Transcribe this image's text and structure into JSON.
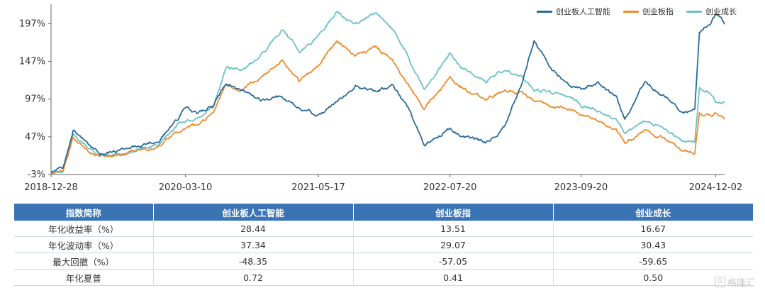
{
  "chart_data": {
    "type": "line",
    "y_axis_ticks": [
      "-3%",
      "47%",
      "97%",
      "147%",
      "197%"
    ],
    "x_axis_ticks": [
      "2018-12-28",
      "2020-03-10",
      "2021-05-17",
      "2022-07-20",
      "2023-09-20",
      "2024-12-02"
    ],
    "ylim": [
      -3,
      217
    ],
    "grid": false,
    "legend_position": "top-right",
    "series": [
      {
        "name": "创业板人工智能",
        "color": "#2b6a99",
        "values": [
          [
            "2018-12-28",
            0
          ],
          [
            "2019-02-05",
            2
          ],
          [
            "2019-03-10",
            55
          ],
          [
            "2019-04-20",
            40
          ],
          [
            "2019-06-05",
            25
          ],
          [
            "2019-08-10",
            28
          ],
          [
            "2019-10-15",
            35
          ],
          [
            "2019-12-15",
            45
          ],
          [
            "2020-02-15",
            72
          ],
          [
            "2020-03-10",
            85
          ],
          [
            "2020-04-20",
            78
          ],
          [
            "2020-06-10",
            90
          ],
          [
            "2020-07-20",
            120
          ],
          [
            "2020-09-10",
            110
          ],
          [
            "2020-11-10",
            95
          ],
          [
            "2021-01-20",
            100
          ],
          [
            "2021-03-15",
            85
          ],
          [
            "2021-05-17",
            75
          ],
          [
            "2021-07-15",
            95
          ],
          [
            "2021-09-15",
            115
          ],
          [
            "2021-11-20",
            105
          ],
          [
            "2022-01-15",
            115
          ],
          [
            "2022-03-15",
            80
          ],
          [
            "2022-04-27",
            35
          ],
          [
            "2022-07-20",
            60
          ],
          [
            "2022-09-20",
            45
          ],
          [
            "2022-11-15",
            40
          ],
          [
            "2023-01-15",
            60
          ],
          [
            "2023-03-10",
            115
          ],
          [
            "2023-04-20",
            175
          ],
          [
            "2023-06-15",
            135
          ],
          [
            "2023-08-15",
            115
          ],
          [
            "2023-09-20",
            110
          ],
          [
            "2023-11-15",
            120
          ],
          [
            "2024-01-15",
            95
          ],
          [
            "2024-02-10",
            70
          ],
          [
            "2024-04-15",
            120
          ],
          [
            "2024-06-15",
            100
          ],
          [
            "2024-08-20",
            80
          ],
          [
            "2024-09-25",
            85
          ],
          [
            "2024-10-10",
            185
          ],
          [
            "2024-11-15",
            200
          ],
          [
            "2024-12-02",
            210
          ],
          [
            "2024-12-31",
            196
          ]
        ]
      },
      {
        "name": "创业板指",
        "color": "#ee8a2e",
        "values": [
          [
            "2018-12-28",
            0
          ],
          [
            "2019-02-05",
            1
          ],
          [
            "2019-03-10",
            45
          ],
          [
            "2019-04-20",
            32
          ],
          [
            "2019-06-05",
            20
          ],
          [
            "2019-08-10",
            22
          ],
          [
            "2019-10-15",
            28
          ],
          [
            "2019-12-15",
            35
          ],
          [
            "2020-02-15",
            55
          ],
          [
            "2020-03-10",
            60
          ],
          [
            "2020-04-20",
            62
          ],
          [
            "2020-06-10",
            78
          ],
          [
            "2020-07-20",
            115
          ],
          [
            "2020-09-10",
            110
          ],
          [
            "2020-11-10",
            125
          ],
          [
            "2021-01-20",
            150
          ],
          [
            "2021-03-15",
            120
          ],
          [
            "2021-05-17",
            140
          ],
          [
            "2021-07-15",
            175
          ],
          [
            "2021-09-15",
            155
          ],
          [
            "2021-11-20",
            165
          ],
          [
            "2022-01-15",
            150
          ],
          [
            "2022-03-15",
            110
          ],
          [
            "2022-04-27",
            85
          ],
          [
            "2022-07-20",
            125
          ],
          [
            "2022-09-20",
            105
          ],
          [
            "2022-11-15",
            100
          ],
          [
            "2023-01-15",
            110
          ],
          [
            "2023-03-10",
            105
          ],
          [
            "2023-04-20",
            95
          ],
          [
            "2023-06-15",
            90
          ],
          [
            "2023-08-15",
            85
          ],
          [
            "2023-09-20",
            75
          ],
          [
            "2023-11-15",
            68
          ],
          [
            "2024-01-15",
            55
          ],
          [
            "2024-02-10",
            40
          ],
          [
            "2024-04-15",
            55
          ],
          [
            "2024-06-15",
            45
          ],
          [
            "2024-08-20",
            30
          ],
          [
            "2024-09-25",
            28
          ],
          [
            "2024-10-10",
            80
          ],
          [
            "2024-11-15",
            75
          ],
          [
            "2024-12-02",
            78
          ],
          [
            "2024-12-31",
            70
          ]
        ]
      },
      {
        "name": "创业成长",
        "color": "#6cc1c6",
        "values": [
          [
            "2018-12-28",
            0
          ],
          [
            "2019-02-05",
            1
          ],
          [
            "2019-03-10",
            50
          ],
          [
            "2019-04-20",
            35
          ],
          [
            "2019-06-05",
            22
          ],
          [
            "2019-08-10",
            24
          ],
          [
            "2019-10-15",
            30
          ],
          [
            "2019-12-15",
            40
          ],
          [
            "2020-02-15",
            62
          ],
          [
            "2020-03-10",
            70
          ],
          [
            "2020-04-20",
            72
          ],
          [
            "2020-06-10",
            90
          ],
          [
            "2020-07-20",
            140
          ],
          [
            "2020-09-10",
            135
          ],
          [
            "2020-11-10",
            155
          ],
          [
            "2021-01-20",
            190
          ],
          [
            "2021-03-15",
            160
          ],
          [
            "2021-05-17",
            180
          ],
          [
            "2021-07-15",
            210
          ],
          [
            "2021-09-15",
            195
          ],
          [
            "2021-11-20",
            208
          ],
          [
            "2022-01-15",
            190
          ],
          [
            "2022-03-15",
            145
          ],
          [
            "2022-04-27",
            110
          ],
          [
            "2022-07-20",
            155
          ],
          [
            "2022-09-20",
            132
          ],
          [
            "2022-11-15",
            120
          ],
          [
            "2023-01-15",
            135
          ],
          [
            "2023-03-10",
            125
          ],
          [
            "2023-04-20",
            110
          ],
          [
            "2023-06-15",
            105
          ],
          [
            "2023-08-15",
            98
          ],
          [
            "2023-09-20",
            88
          ],
          [
            "2023-11-15",
            82
          ],
          [
            "2024-01-15",
            68
          ],
          [
            "2024-02-10",
            50
          ],
          [
            "2024-04-15",
            68
          ],
          [
            "2024-06-15",
            58
          ],
          [
            "2024-08-20",
            42
          ],
          [
            "2024-09-25",
            38
          ],
          [
            "2024-10-10",
            110
          ],
          [
            "2024-11-15",
            105
          ],
          [
            "2024-12-02",
            95
          ],
          [
            "2024-12-31",
            92
          ]
        ]
      }
    ]
  },
  "table": {
    "headers": [
      "指数简称",
      "创业板人工智能",
      "创业板指",
      "创业成长"
    ],
    "rows": [
      [
        "年化收益率（%）",
        "28.44",
        "13.51",
        "16.67"
      ],
      [
        "年化波动率（%）",
        "37.34",
        "29.07",
        "30.43"
      ],
      [
        "最大回撤（%）",
        "-48.35",
        "-57.05",
        "-59.65"
      ],
      [
        "年化夏普",
        "0.72",
        "0.41",
        "0.50"
      ]
    ]
  },
  "watermark": {
    "icon": "G",
    "text": "格隆汇"
  }
}
